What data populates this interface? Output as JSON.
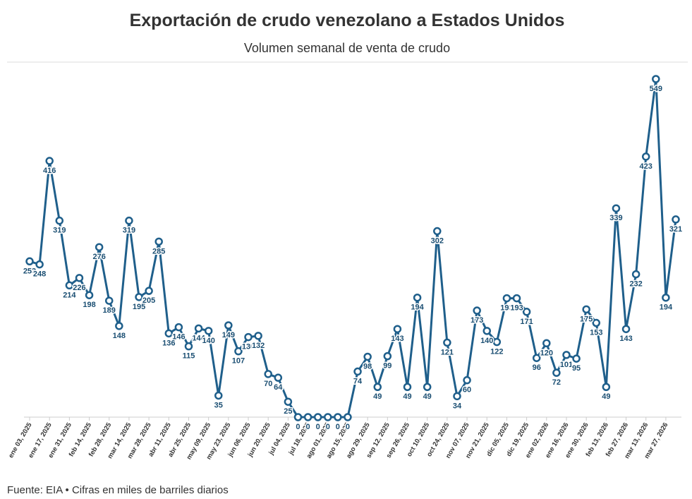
{
  "chart_data": {
    "type": "line",
    "title": "Exportación de crudo venezolano a Estados Unidos",
    "subtitle": "Volumen semanal de venta de crudo",
    "source": "Fuente: EIA • Cifras en miles de barriles diarios",
    "color": "#1f5f8b",
    "categories": [
      "ene 03, 2025",
      null,
      "ene 17, 2025",
      null,
      "ene 31, 2025",
      null,
      "feb 14, 2025",
      null,
      "feb 28, 2025",
      null,
      "mar 14, 2025",
      null,
      "mar 28, 2025",
      null,
      "abr 11, 2025",
      null,
      "abr 25, 2025",
      null,
      "may 09, 2025",
      null,
      "may 23, 2025",
      null,
      "jun 06, 2025",
      null,
      "jun 20, 2025",
      null,
      "jul 04, 2025",
      null,
      "jul 18, 2025",
      null,
      "ago 01, 2025",
      null,
      "ago 15, 2025",
      null,
      "ago 29, 2025",
      null,
      "sep 12, 2025",
      null,
      "sep 26, 2025",
      null,
      "oct 10, 2025",
      null,
      "oct 24, 2025",
      null,
      "nov 07, 2025",
      null,
      "nov 21, 2025",
      null,
      "dic 05, 2025",
      null,
      "dic 19, 2025",
      null,
      "ene 02, 2026",
      null,
      "ene 16, 2026",
      null,
      "ene 30, 2026",
      null,
      "feb 13, 2026",
      null,
      "feb 27, 2026",
      null,
      "mar 13, 2026",
      null,
      "mar 27, 2026",
      null
    ],
    "values": [
      253,
      248,
      416,
      319,
      214,
      226,
      198,
      276,
      189,
      148,
      319,
      195,
      205,
      285,
      136,
      146,
      115,
      144,
      140,
      35,
      149,
      107,
      130,
      132,
      70,
      64,
      25,
      0,
      0,
      0,
      0,
      0,
      0,
      74,
      98,
      49,
      99,
      143,
      49,
      194,
      49,
      302,
      121,
      34,
      60,
      173,
      140,
      122,
      193,
      193,
      171,
      96,
      120,
      72,
      101,
      95,
      175,
      153,
      49,
      339,
      143,
      232,
      423,
      549,
      194,
      321
    ],
    "ylim": [
      0,
      549
    ]
  }
}
